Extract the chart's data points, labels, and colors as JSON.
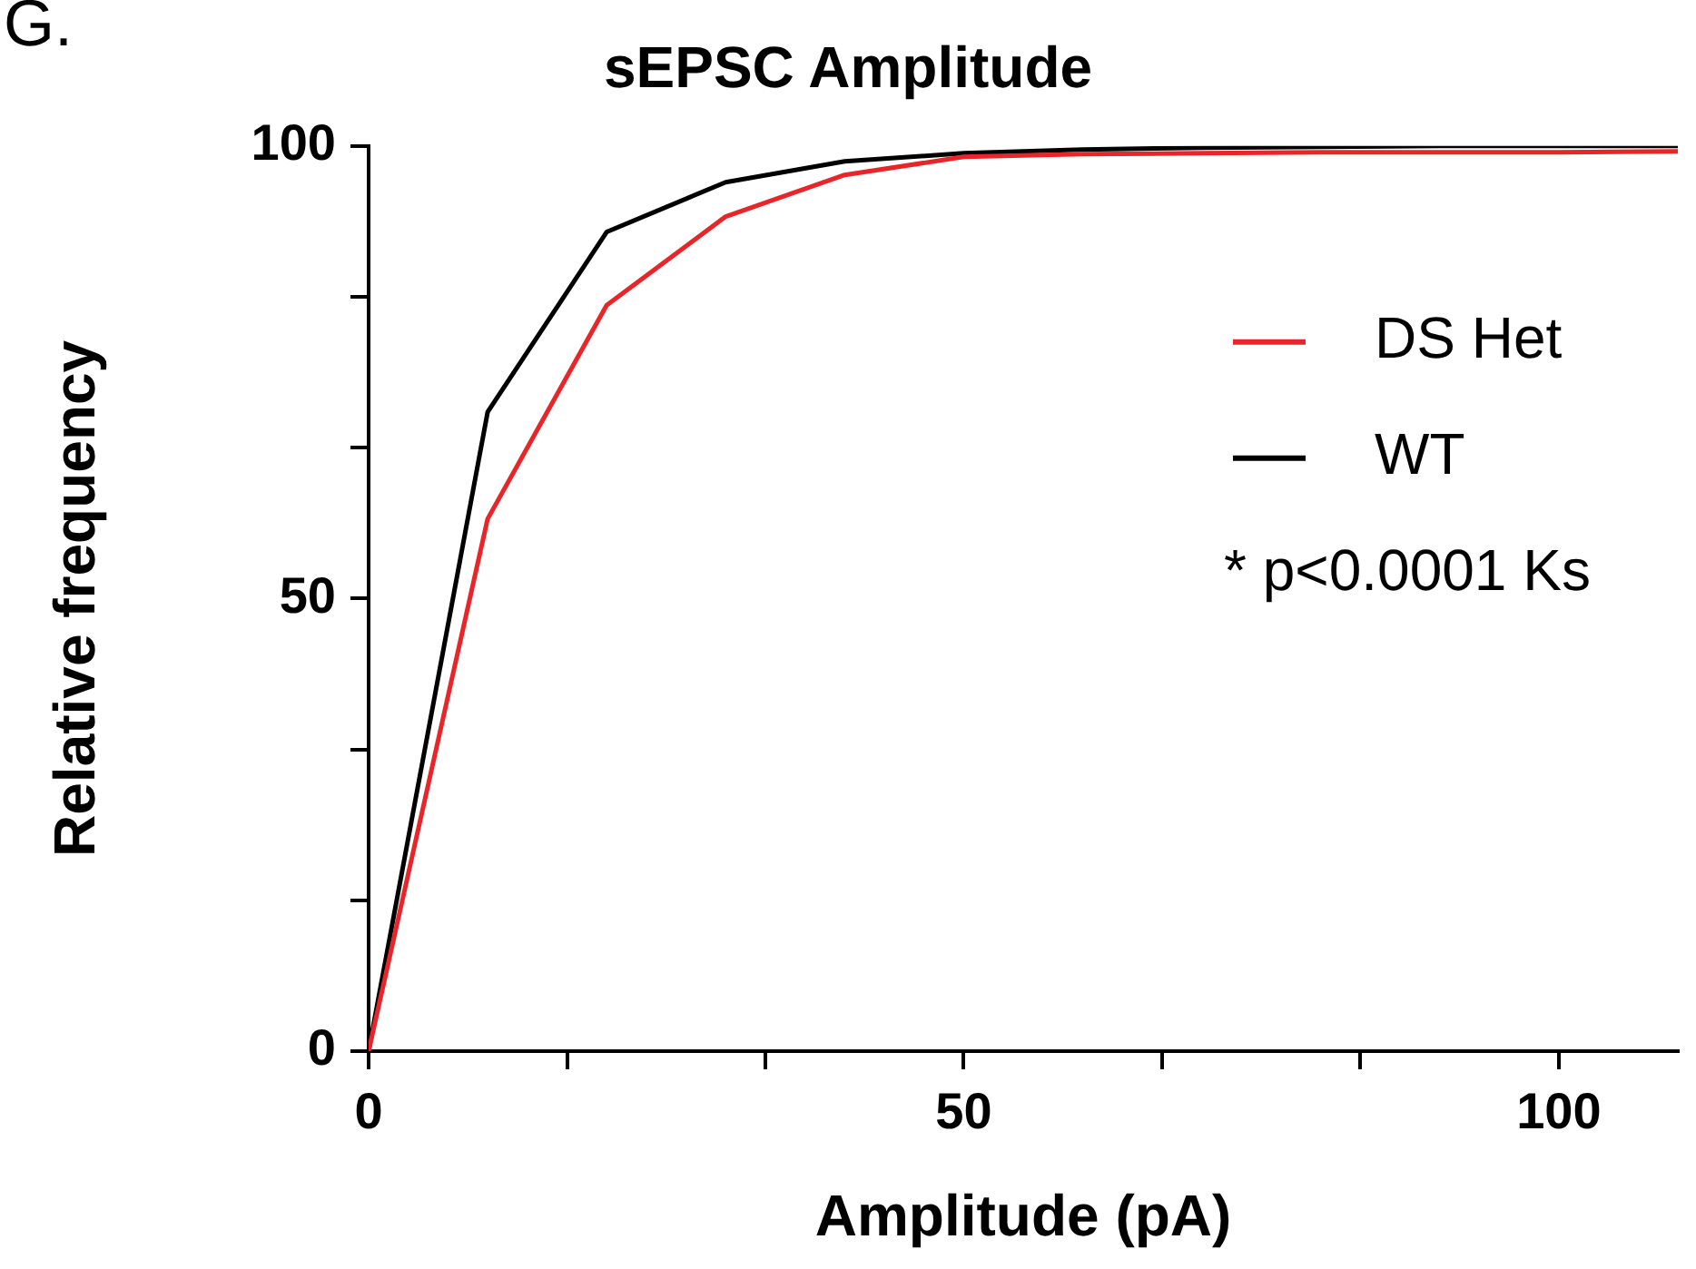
{
  "chart_data": {
    "type": "line",
    "title": "sEPSC Amplitude",
    "xlabel": "Amplitude (pA)",
    "ylabel": "Relative frequency",
    "x": [
      0,
      10,
      20,
      30,
      40,
      50,
      60,
      70,
      80,
      90,
      100,
      110
    ],
    "series": [
      {
        "name": "DS Het",
        "color": "#e8262a",
        "values": [
          0,
          58.8,
          82.4,
          92.2,
          96.8,
          98.8,
          99.1,
          99.2,
          99.3,
          99.3,
          99.3,
          99.4
        ]
      },
      {
        "name": "WT",
        "color": "#000000",
        "values": [
          0,
          70.6,
          90.5,
          96,
          98.3,
          99.2,
          99.6,
          99.8,
          99.9,
          100,
          100,
          100
        ]
      }
    ],
    "xlim": [
      0,
      110
    ],
    "xticks": [
      0,
      {
        "value": 16.67,
        "label": null
      },
      {
        "value": 33.33,
        "label": null
      },
      50,
      {
        "value": 66.67,
        "label": null
      },
      {
        "value": 83.33,
        "label": null
      },
      100
    ],
    "ylim": [
      0,
      100
    ],
    "yticks": [
      0,
      {
        "value": 16.67,
        "label": null
      },
      {
        "value": 33.33,
        "label": null
      },
      50,
      {
        "value": 66.67,
        "label": null
      },
      {
        "value": 83.33,
        "label": null
      },
      100
    ],
    "grid": false,
    "legend": "right",
    "marker": "none",
    "line_style": "solid",
    "annotations": [
      "G.",
      "* p<0.0001 Ks"
    ]
  }
}
